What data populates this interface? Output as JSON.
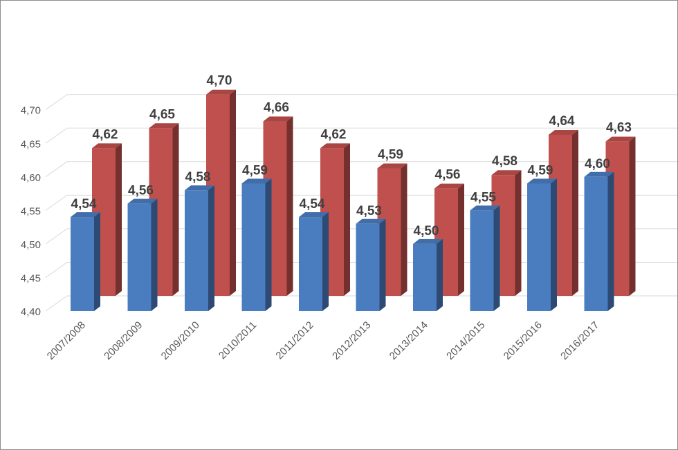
{
  "chart_data": {
    "type": "bar",
    "style": "3d-clustered-column",
    "categories": [
      "2007/2008",
      "2008/2009",
      "2009/2010",
      "2010/2011",
      "2011/2012",
      "2012/2013",
      "2013/2014",
      "2014/2015",
      "2015/2016",
      "2016/2017"
    ],
    "series": [
      {
        "color": "#4a7cc0",
        "values": [
          4.54,
          4.56,
          4.58,
          4.59,
          4.54,
          4.53,
          4.5,
          4.55,
          4.59,
          4.6
        ],
        "labels": [
          "4,54",
          "4,56",
          "4,58",
          "4,59",
          "4,54",
          "4,53",
          "4,50",
          "4,55",
          "4,59",
          "4,60"
        ]
      },
      {
        "color": "#c0504d",
        "values": [
          4.62,
          4.65,
          4.7,
          4.66,
          4.62,
          4.59,
          4.56,
          4.58,
          4.64,
          4.63
        ],
        "labels": [
          "4,62",
          "4,65",
          "4,70",
          "4,66",
          "4,62",
          "4,59",
          "4,56",
          "4,58",
          "4,64",
          "4,63"
        ]
      }
    ],
    "y_ticks": [
      "4,40",
      "4,45",
      "4,50",
      "4,55",
      "4,60",
      "4,65",
      "4,70"
    ],
    "ylim": [
      4.4,
      4.7
    ],
    "grid": true,
    "legend": "none",
    "title": "",
    "xlabel": "",
    "ylabel": ""
  }
}
